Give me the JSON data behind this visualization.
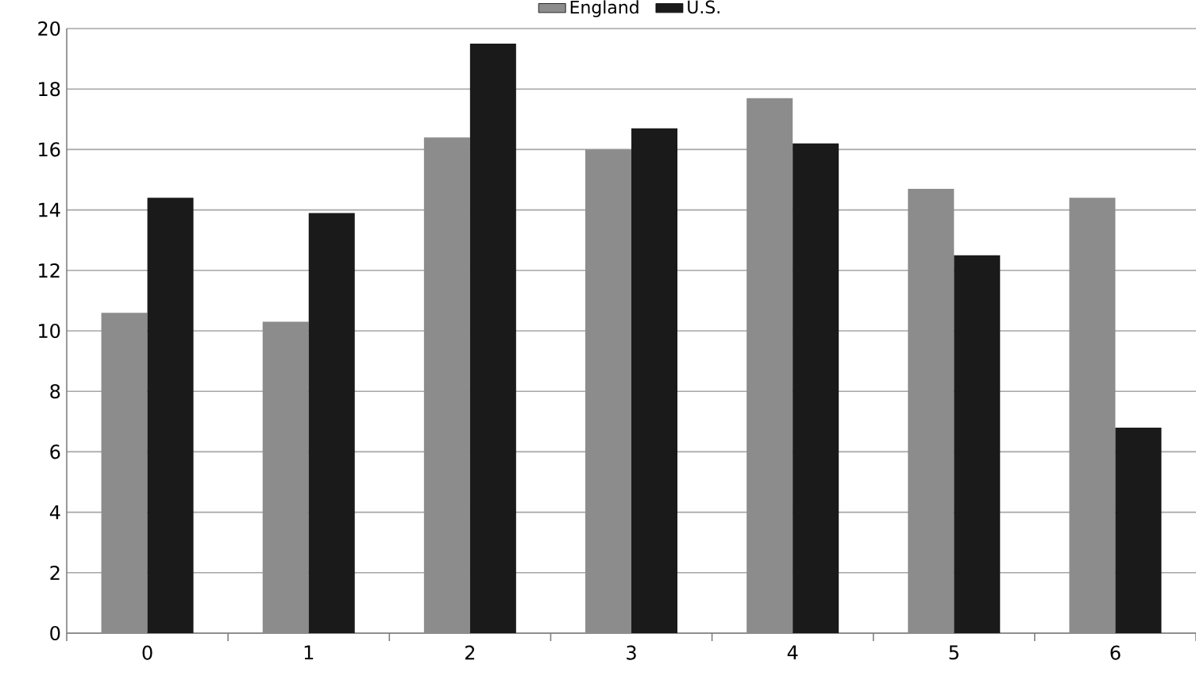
{
  "chart_data": {
    "type": "bar",
    "categories": [
      "0",
      "1",
      "2",
      "3",
      "4",
      "5",
      "6"
    ],
    "series": [
      {
        "name": "England",
        "color": "#8c8c8c",
        "values": [
          10.6,
          10.3,
          16.4,
          16.0,
          17.7,
          14.7,
          14.4
        ]
      },
      {
        "name": "U.S.",
        "color": "#1a1a1a",
        "values": [
          14.4,
          13.9,
          19.5,
          16.7,
          16.2,
          12.5,
          6.8
        ]
      }
    ],
    "ylim": [
      0,
      20
    ],
    "yticks": [
      0,
      2,
      4,
      6,
      8,
      10,
      12,
      14,
      16,
      18,
      20
    ],
    "grid": "y",
    "legend": "top"
  }
}
